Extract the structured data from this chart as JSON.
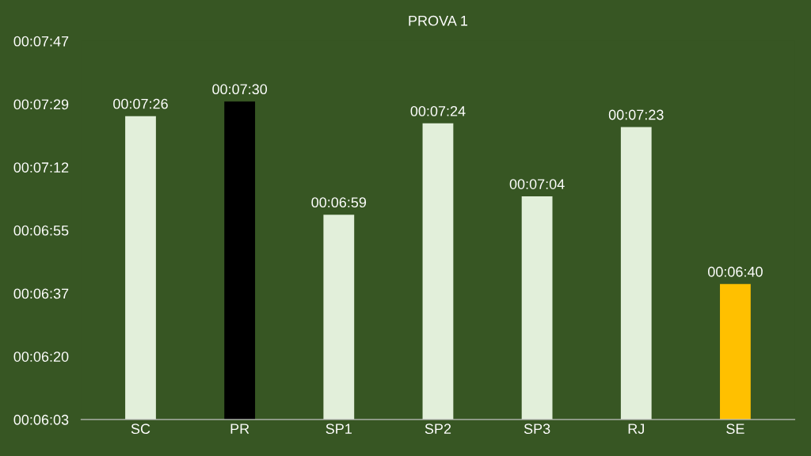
{
  "chart_data": {
    "type": "bar",
    "title": "PROVA 1",
    "categories": [
      "SC",
      "PR",
      "SP1",
      "SP2",
      "SP3",
      "RJ",
      "SE"
    ],
    "values": [
      446,
      450,
      419,
      444,
      424,
      443,
      400
    ],
    "value_labels": [
      "00:07:26",
      "00:07:30",
      "00:06:59",
      "00:07:24",
      "00:07:04",
      "00:07:23",
      "00:06:40"
    ],
    "colors": [
      "#e2efda",
      "#000000",
      "#e2efda",
      "#e2efda",
      "#e2efda",
      "#e2efda",
      "#ffc000"
    ],
    "ylim": [
      362.88,
      466.56
    ],
    "yticks": [
      {
        "value": 362.88,
        "label": "00:06:03"
      },
      {
        "value": 380.16,
        "label": "00:06:20"
      },
      {
        "value": 397.44,
        "label": "00:06:37"
      },
      {
        "value": 414.72,
        "label": "00:06:55"
      },
      {
        "value": 432,
        "label": "00:07:12"
      },
      {
        "value": 449.28,
        "label": "00:07:29"
      },
      {
        "value": 466.56,
        "label": "00:07:47"
      }
    ],
    "grid": false
  }
}
